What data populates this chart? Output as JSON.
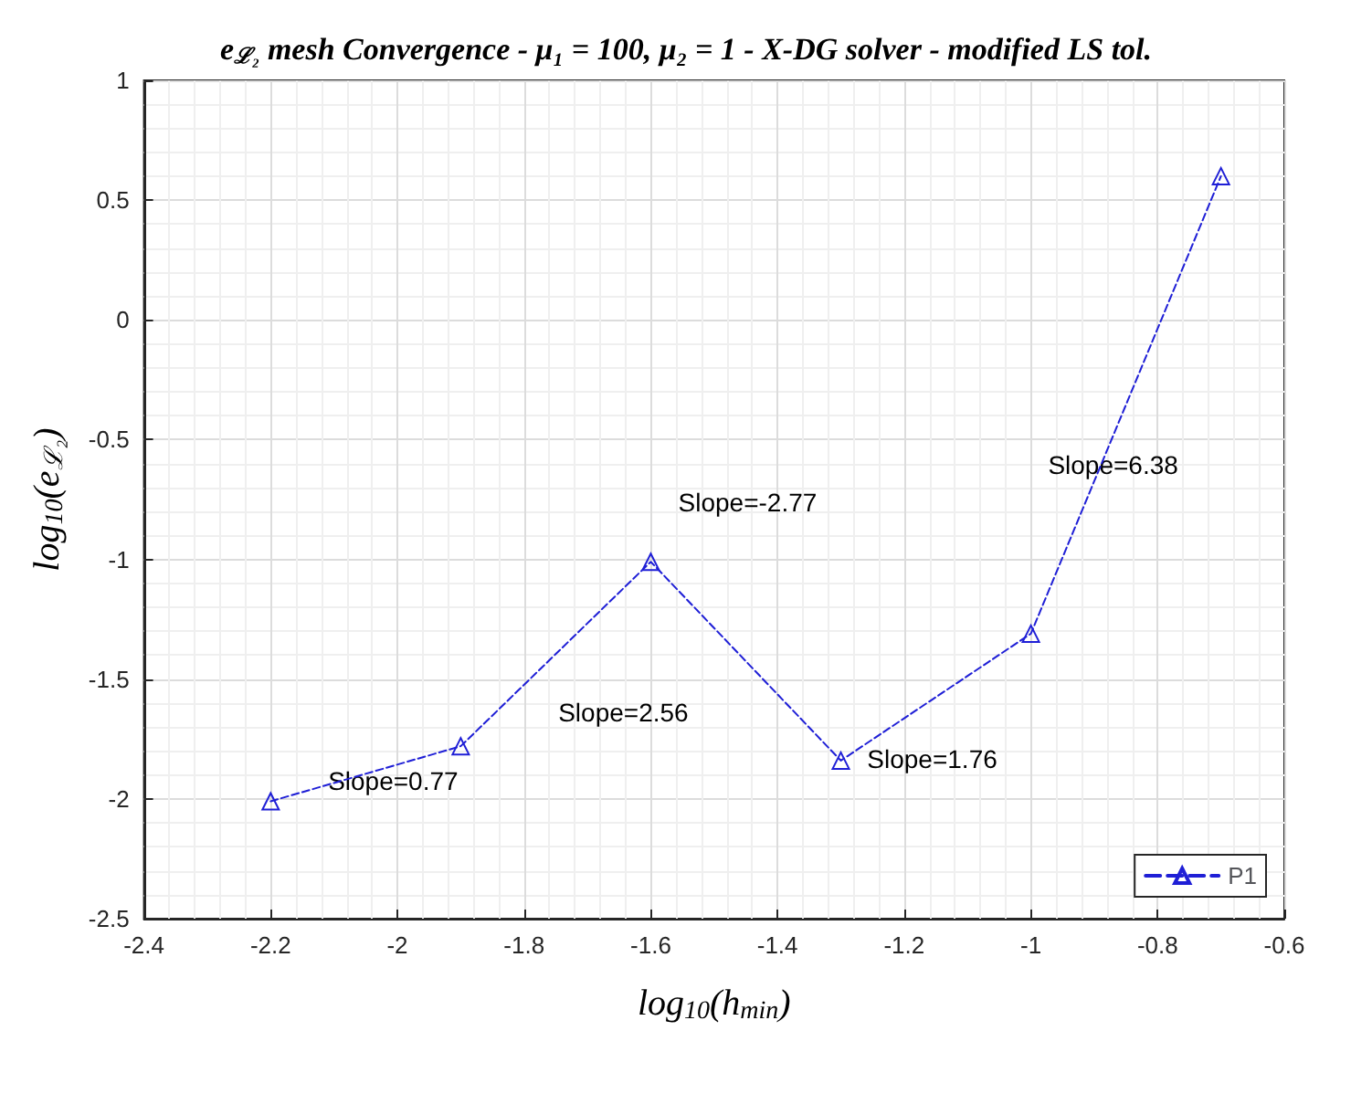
{
  "chart_data": {
    "type": "line",
    "title": "e$_{ℒ₂}$ mesh Convergence - μ₁ = 100, μ₂ = 1 - X-DG solver - modified LS tol.",
    "xlabel": "log$_{10}$(h$_{min}$)",
    "ylabel": "log$_{10}$(e$_{ℒ₂}$)",
    "x": [
      -2.2,
      -1.9,
      -1.6,
      -1.3,
      -1.0,
      -0.7
    ],
    "series": [
      {
        "name": "P1",
        "color": "#1f1fd6",
        "values": [
          -2.01,
          -1.78,
          -1.01,
          -1.84,
          -1.31,
          0.6
        ]
      }
    ],
    "xlim": [
      -2.4,
      -0.6
    ],
    "xticks": [
      -2.4,
      -2.2,
      -2,
      -1.8,
      -1.6,
      -1.4,
      -1.2,
      -1,
      -0.8,
      -0.6
    ],
    "ylim": [
      -2.5,
      1
    ],
    "yticks": [
      -2.5,
      -2,
      -1.5,
      -1,
      -0.5,
      0,
      0.5,
      1
    ],
    "annotations": [
      "Slope=0.77",
      "Slope=2.56",
      "Slope=-2.77",
      "Slope=1.76",
      "Slope=6.38"
    ],
    "grid": true,
    "legend": "bottom right",
    "marker": "triangle",
    "line_style": "dashed"
  }
}
